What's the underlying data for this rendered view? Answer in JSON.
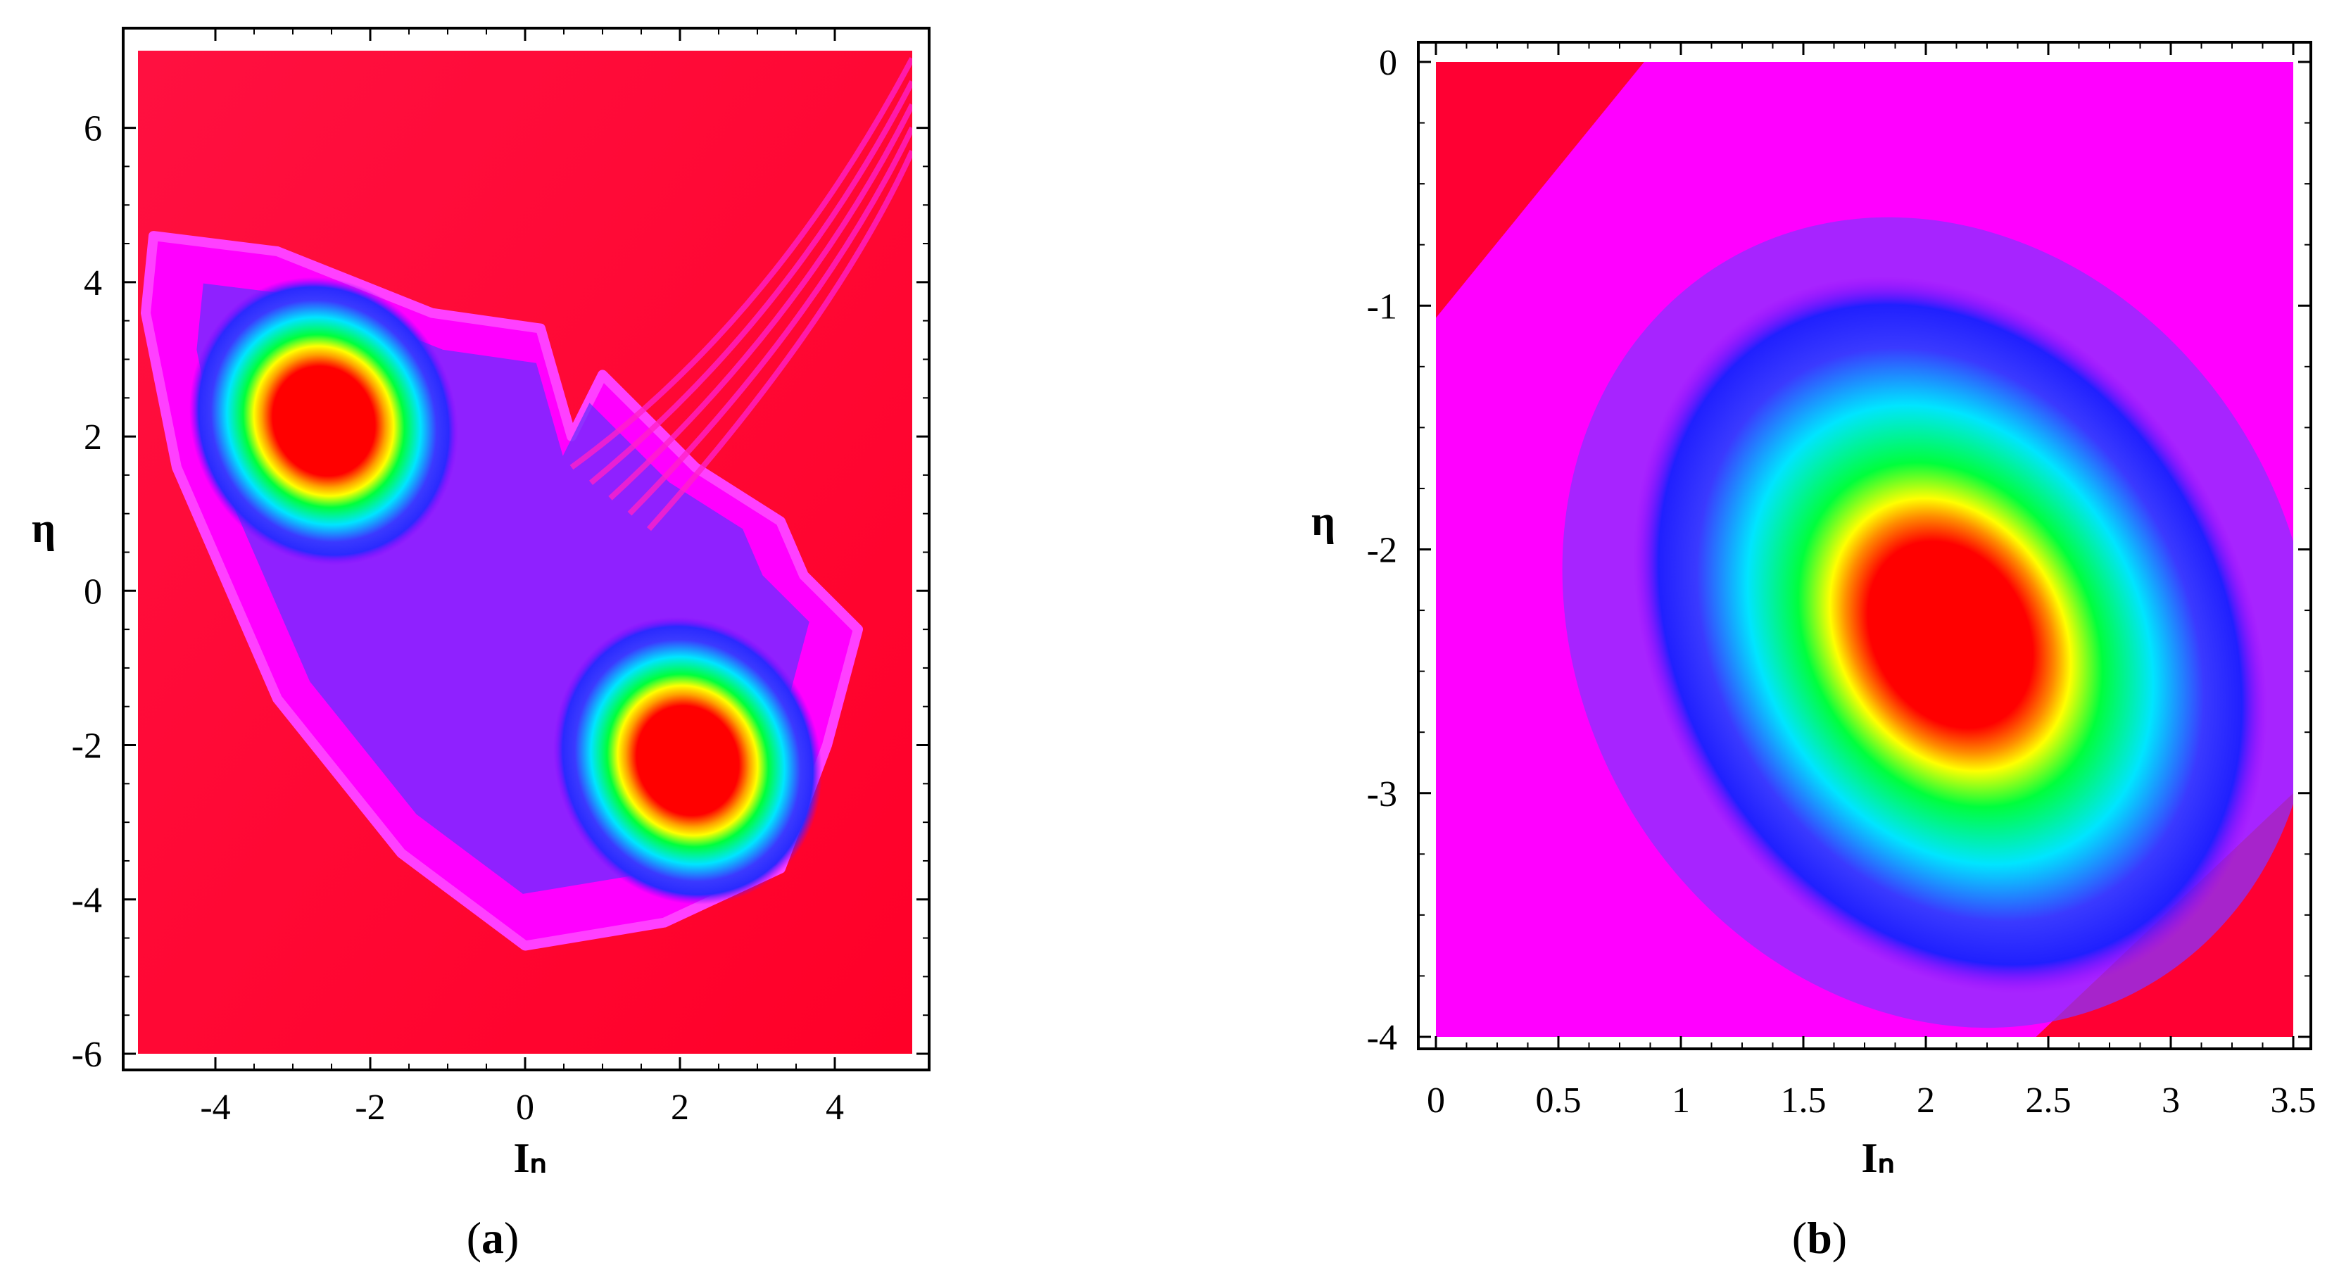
{
  "chart_data": [
    {
      "type": "heatmap",
      "panel_label": "a",
      "title": "",
      "xlabel": "Iₙ",
      "ylabel": "η",
      "xlim": [
        -5.0,
        5.0
      ],
      "ylim": [
        -6.0,
        7.0
      ],
      "x_ticks": [
        "-4",
        "-2",
        "0",
        "2",
        "4"
      ],
      "x_tick_values": [
        -4,
        -2,
        0,
        2,
        4
      ],
      "y_ticks": [
        "-6",
        "-4",
        "-2",
        "0",
        "2",
        "4",
        "6"
      ],
      "y_tick_values": [
        -6,
        -4,
        -2,
        0,
        2,
        4,
        6
      ],
      "colormap": [
        "#ff0033",
        "#ff00ff",
        "#3a3aff",
        "#00e5ff",
        "#00ff3c",
        "#ffff00",
        "#ff0000"
      ],
      "background_color": "#ff0033",
      "islands": [
        {
          "cx": -2.6,
          "cy": 2.2,
          "rx": 1.7,
          "ry": 1.9,
          "rotation_deg": -25
        },
        {
          "cx": 2.1,
          "cy": -2.2,
          "rx": 1.7,
          "ry": 1.9,
          "rotation_deg": -25
        }
      ],
      "chaotic_region": [
        [
          -4.8,
          4.6
        ],
        [
          -3.2,
          4.4
        ],
        [
          -1.2,
          3.6
        ],
        [
          0.2,
          3.4
        ],
        [
          0.6,
          2.0
        ],
        [
          1.0,
          2.8
        ],
        [
          2.2,
          1.6
        ],
        [
          3.3,
          0.9
        ],
        [
          3.6,
          0.2
        ],
        [
          4.3,
          -0.5
        ],
        [
          3.9,
          -2.0
        ],
        [
          3.3,
          -3.6
        ],
        [
          1.8,
          -4.3
        ],
        [
          0.0,
          -4.6
        ],
        [
          -1.6,
          -3.4
        ],
        [
          -3.2,
          -1.4
        ],
        [
          -4.5,
          1.6
        ],
        [
          -4.9,
          3.6
        ]
      ],
      "grid": false
    },
    {
      "type": "heatmap",
      "panel_label": "b",
      "title": "",
      "xlabel": "Iₙ",
      "ylabel": "η",
      "xlim": [
        0.0,
        3.5
      ],
      "ylim": [
        -4.0,
        0.0
      ],
      "x_ticks": [
        "0",
        "0.5",
        "1",
        "1.5",
        "2",
        "2.5",
        "3",
        "3.5"
      ],
      "x_tick_values": [
        0,
        0.5,
        1,
        1.5,
        2,
        2.5,
        3,
        3.5
      ],
      "y_ticks": [
        "0",
        "-1",
        "-2",
        "-3",
        "-4"
      ],
      "y_tick_values": [
        0,
        -1,
        -2,
        -3,
        -4
      ],
      "colormap": [
        "#ff0033",
        "#ff00ff",
        "#3a3aff",
        "#00e5ff",
        "#00ff3c",
        "#ffff00",
        "#ff0000"
      ],
      "background_color": "#ff00ff",
      "islands": [
        {
          "cx": 2.1,
          "cy": -2.35,
          "rx": 1.2,
          "ry": 1.55,
          "rotation_deg": -30
        }
      ],
      "corner_regions": [
        {
          "corner": "top-left",
          "color": "#ff0033"
        },
        {
          "corner": "bottom-right",
          "color": "#ff0033"
        }
      ],
      "grid": false
    }
  ],
  "captions": [
    {
      "open": "(",
      "letter": "a",
      "close": ")"
    },
    {
      "open": "(",
      "letter": "b",
      "close": ")"
    }
  ]
}
